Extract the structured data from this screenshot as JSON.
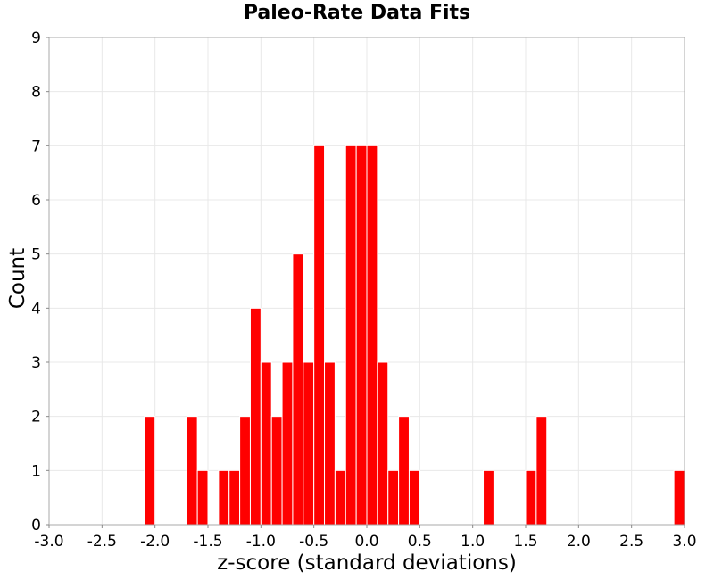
{
  "chart_data": {
    "type": "bar",
    "title": "Paleo-Rate Data Fits",
    "xlabel": "z-score (standard deviations)",
    "ylabel": "Count",
    "xlim": [
      -3.0,
      3.0
    ],
    "ylim": [
      0,
      9
    ],
    "bin_width": 0.1,
    "x_ticks": [
      "-3.0",
      "-2.5",
      "-2.0",
      "-1.5",
      "-1.0",
      "-0.5",
      "0.0",
      "0.5",
      "1.0",
      "1.5",
      "2.0",
      "2.5",
      "3.0"
    ],
    "y_ticks": [
      "0",
      "1",
      "2",
      "3",
      "4",
      "5",
      "6",
      "7",
      "8",
      "9"
    ],
    "grid": true,
    "bar_color": "#ff0000",
    "bins": [
      {
        "x": -2.05,
        "count": 2
      },
      {
        "x": -1.65,
        "count": 2
      },
      {
        "x": -1.55,
        "count": 1
      },
      {
        "x": -1.35,
        "count": 1
      },
      {
        "x": -1.25,
        "count": 1
      },
      {
        "x": -1.15,
        "count": 2
      },
      {
        "x": -1.05,
        "count": 4
      },
      {
        "x": -0.95,
        "count": 3
      },
      {
        "x": -0.85,
        "count": 2
      },
      {
        "x": -0.75,
        "count": 3
      },
      {
        "x": -0.65,
        "count": 5
      },
      {
        "x": -0.55,
        "count": 3
      },
      {
        "x": -0.45,
        "count": 7
      },
      {
        "x": -0.35,
        "count": 3
      },
      {
        "x": -0.25,
        "count": 1
      },
      {
        "x": -0.15,
        "count": 7
      },
      {
        "x": -0.05,
        "count": 7
      },
      {
        "x": 0.05,
        "count": 7
      },
      {
        "x": 0.15,
        "count": 3
      },
      {
        "x": 0.25,
        "count": 1
      },
      {
        "x": 0.35,
        "count": 2
      },
      {
        "x": 0.45,
        "count": 1
      },
      {
        "x": 1.15,
        "count": 1
      },
      {
        "x": 1.55,
        "count": 1
      },
      {
        "x": 1.65,
        "count": 2
      },
      {
        "x": 2.95,
        "count": 1
      }
    ]
  }
}
